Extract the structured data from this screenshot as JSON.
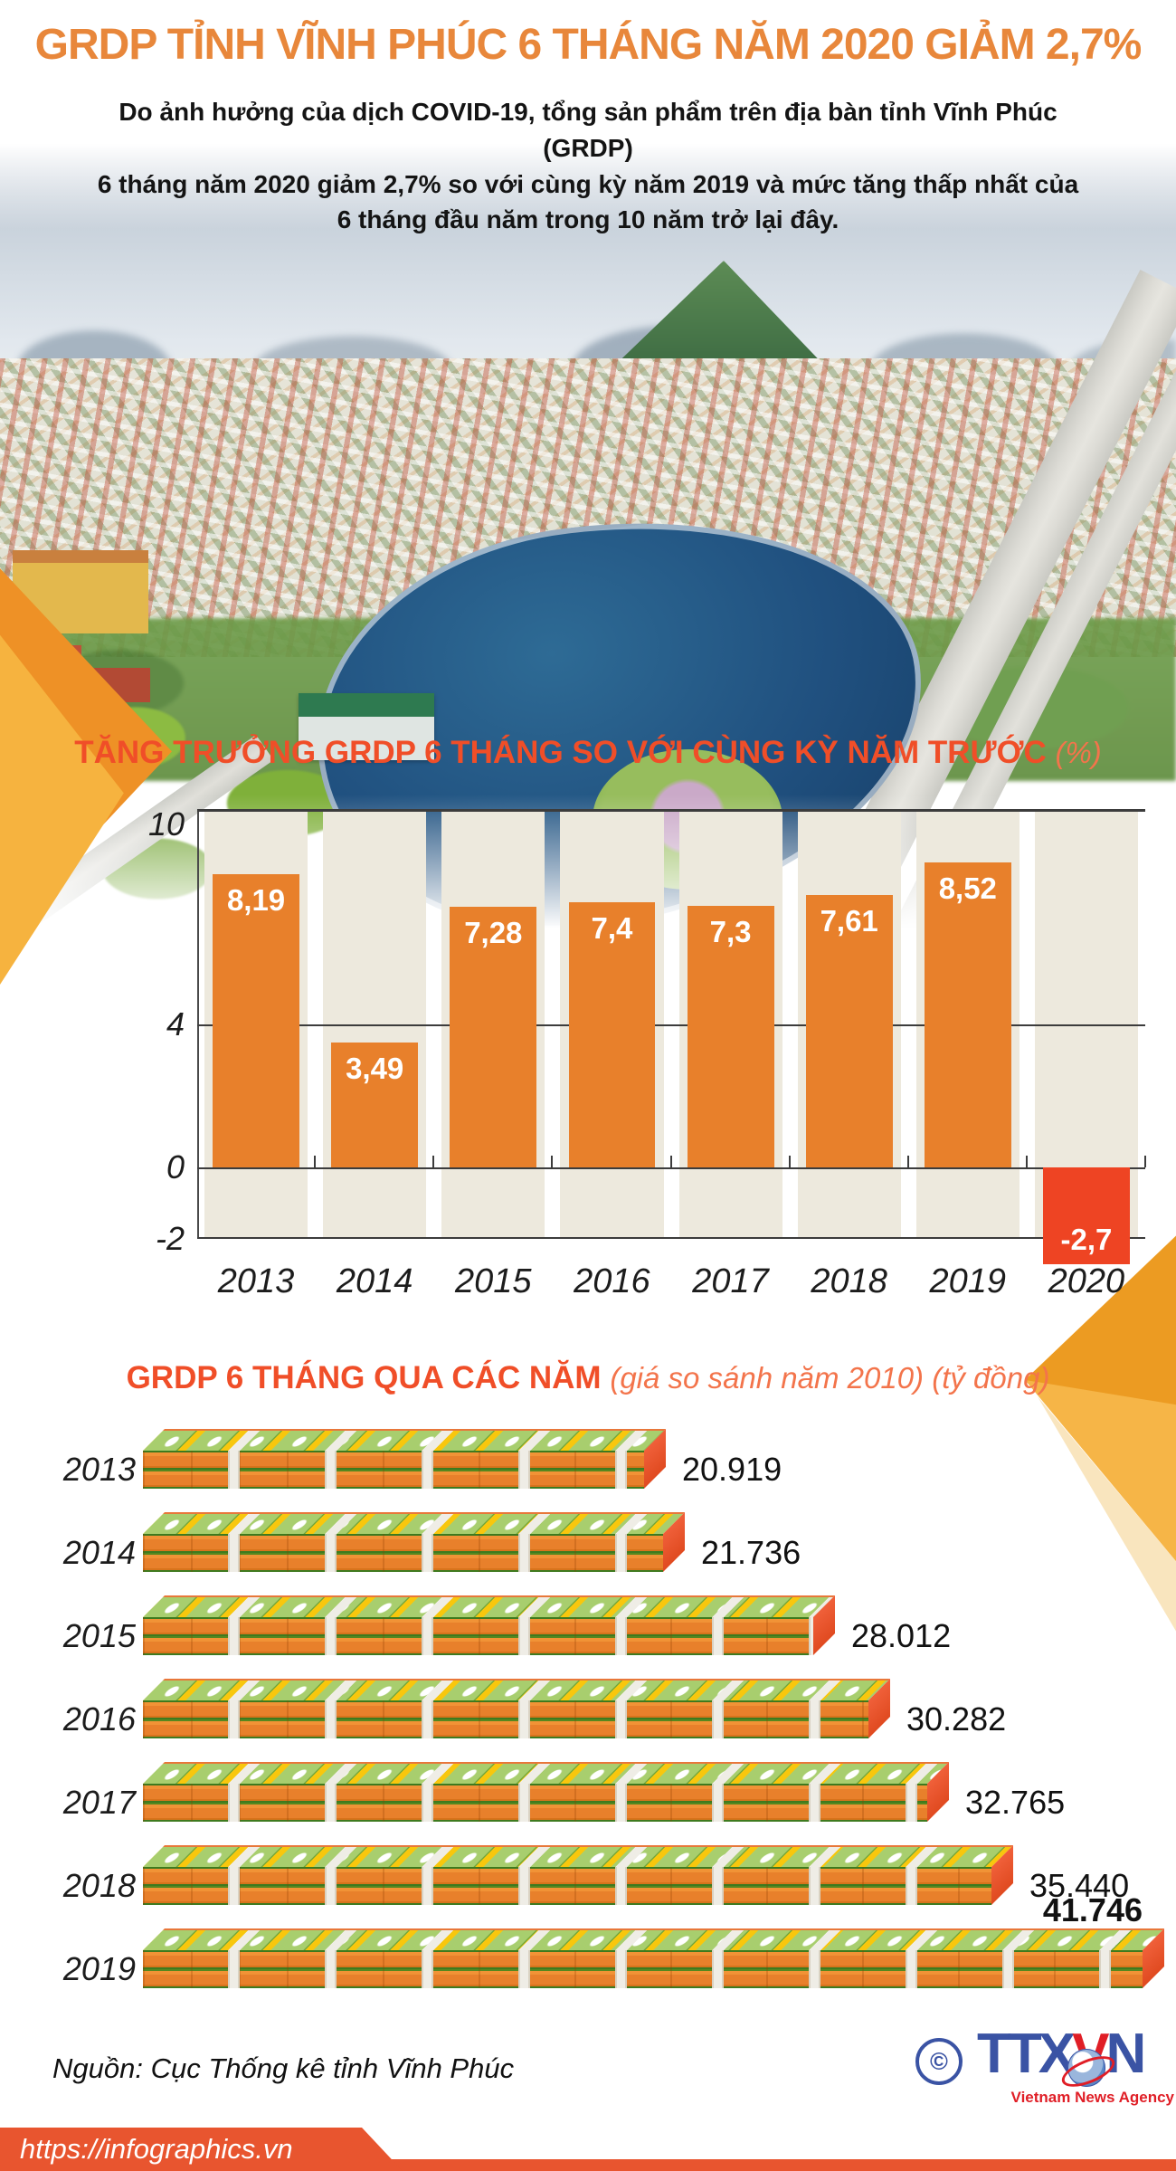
{
  "header": {
    "title": "GRDP TỈNH VĨNH PHÚC 6 THÁNG NĂM 2020 GIẢM 2,7%",
    "subtitle_lines": [
      "Do ảnh hưởng của dịch COVID-19, tổng sản phẩm trên địa bàn tỉnh Vĩnh Phúc (GRDP)",
      "6 tháng năm 2020 giảm 2,7% so với cùng kỳ năm 2019 và mức tăng thấp nhất của",
      "6 tháng đầu năm trong 10 năm trở lại đây."
    ]
  },
  "chart_data": [
    {
      "type": "bar",
      "title": "TĂNG TRƯỞNG GRDP 6 THÁNG SO VỚI CÙNG KỲ NĂM TRƯỚC",
      "title_unit": "(%)",
      "categories": [
        "2013",
        "2014",
        "2015",
        "2016",
        "2017",
        "2018",
        "2019",
        "2020"
      ],
      "values": [
        8.19,
        3.49,
        7.28,
        7.4,
        7.3,
        7.61,
        8.52,
        -2.7
      ],
      "value_labels": [
        "8,19",
        "3,49",
        "7,28",
        "7,4",
        "7,3",
        "7,61",
        "8,52",
        "-2,7"
      ],
      "y_ticks": [
        10,
        4,
        0,
        -2
      ],
      "y_tick_labels": [
        "10",
        "4",
        "0",
        "-2"
      ],
      "ylim": [
        -2,
        10
      ],
      "grid": "lines at 10, 4, 0, -2",
      "legend_position": "none",
      "bar_color": "#e8802b",
      "negative_bar_color": "#ee4423",
      "column_bg_color": "#ede9dd"
    },
    {
      "type": "bar",
      "orientation": "horizontal",
      "style": "money-stack-pictogram",
      "title": "GRDP 6 THÁNG QUA CÁC NĂM",
      "title_unit": "(giá so sánh năm 2010) (tỷ đồng)",
      "categories": [
        "2013",
        "2014",
        "2015",
        "2016",
        "2017",
        "2018",
        "2019"
      ],
      "values": [
        20919,
        21736,
        28012,
        30282,
        32765,
        35440,
        41746
      ],
      "value_labels": [
        "20.919",
        "21.736",
        "28.012",
        "30.282",
        "32.765",
        "35.440",
        "41.746"
      ],
      "legend_position": "none"
    }
  ],
  "footer": {
    "source": "Nguồn: Cục Thống kê tỉnh Vĩnh Phúc",
    "logo": {
      "copyright": "©",
      "ttx": "TTX",
      "v": "V",
      "n": "N",
      "caption": "Vietnam News Agency"
    },
    "url": "https://infographics.vn"
  },
  "colors": {
    "title_orange": "#e8873b",
    "section_title_red": "#f04e28",
    "bar_orange": "#e8802b",
    "bar_negative_red": "#ee4423",
    "column_beige": "#ede9dd",
    "deco_gold": "#f6b33f",
    "deco_orange": "#ee9126",
    "bottom_bar": "#e8552f",
    "logo_blue": "#3a53a4",
    "logo_red": "#e01e26",
    "money_yellow": "#f8c70d",
    "money_note_green": "#a8ce6e",
    "money_front_orange": "#e8802b",
    "money_end_red": "#e8502b"
  }
}
